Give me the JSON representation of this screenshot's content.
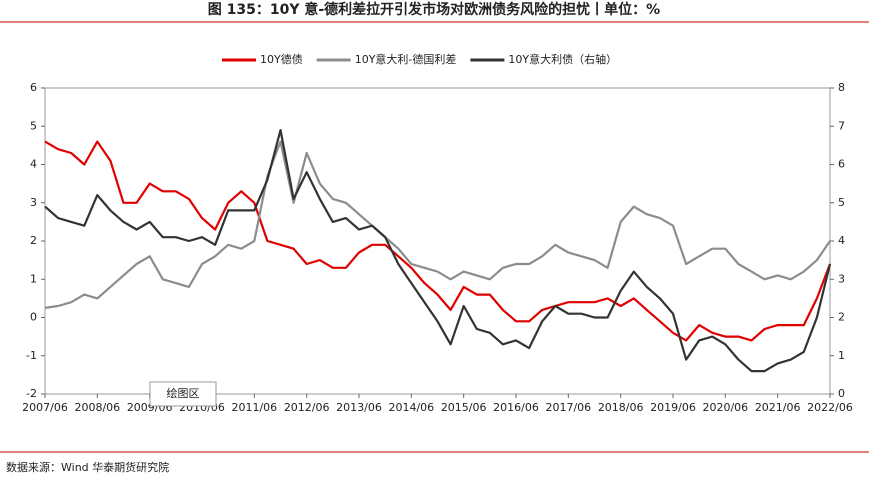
{
  "chart_data": {
    "type": "line",
    "title": "图 135：10Y 意-德利差拉开引发市场对欧洲债务风险的担忧丨单位：%",
    "source": "数据来源：Wind 华泰期货研究院",
    "tooltip": "绘图区",
    "x": [
      "2007/06",
      "2007/09",
      "2007/12",
      "2008/03",
      "2008/06",
      "2008/09",
      "2008/12",
      "2009/03",
      "2009/06",
      "2009/09",
      "2009/12",
      "2010/03",
      "2010/06",
      "2010/09",
      "2010/12",
      "2011/03",
      "2011/06",
      "2011/09",
      "2011/12",
      "2012/03",
      "2012/06",
      "2012/09",
      "2012/12",
      "2013/03",
      "2013/06",
      "2013/09",
      "2013/12",
      "2014/03",
      "2014/06",
      "2014/09",
      "2014/12",
      "2015/03",
      "2015/06",
      "2015/09",
      "2015/12",
      "2016/03",
      "2016/06",
      "2016/09",
      "2016/12",
      "2017/03",
      "2017/06",
      "2017/09",
      "2017/12",
      "2018/03",
      "2018/06",
      "2018/09",
      "2018/12",
      "2019/03",
      "2019/06",
      "2019/09",
      "2019/12",
      "2020/03",
      "2020/06",
      "2020/09",
      "2020/12",
      "2021/03",
      "2021/06",
      "2021/09",
      "2021/12",
      "2022/03",
      "2022/06"
    ],
    "xlim": [
      "2007/06",
      "2022/06"
    ],
    "xticks": [
      "2007/06",
      "2008/06",
      "2009/06",
      "2010/06",
      "2011/06",
      "2012/06",
      "2013/06",
      "2014/06",
      "2015/06",
      "2016/06",
      "2017/06",
      "2018/06",
      "2019/06",
      "2020/06",
      "2021/06",
      "2022/06"
    ],
    "ylim": [
      -2,
      6
    ],
    "yticks": [
      -2,
      -1,
      0,
      1,
      2,
      3,
      4,
      5,
      6
    ],
    "y2lim": [
      0,
      8
    ],
    "y2ticks": [
      0,
      1,
      2,
      3,
      4,
      5,
      6,
      7,
      8
    ],
    "series": [
      {
        "name": "10Y德债",
        "color": "#e00000",
        "values": [
          4.6,
          4.4,
          4.3,
          4.0,
          4.6,
          4.1,
          3.0,
          3.0,
          3.5,
          3.3,
          3.3,
          3.1,
          2.6,
          2.3,
          3.0,
          3.3,
          3.0,
          2.0,
          1.9,
          1.8,
          1.4,
          1.5,
          1.3,
          1.3,
          1.7,
          1.9,
          1.9,
          1.6,
          1.3,
          0.9,
          0.6,
          0.2,
          0.8,
          0.6,
          0.6,
          0.2,
          -0.1,
          -0.1,
          0.2,
          0.3,
          0.4,
          0.4,
          0.4,
          0.5,
          0.3,
          0.5,
          0.2,
          -0.1,
          -0.4,
          -0.6,
          -0.2,
          -0.4,
          -0.5,
          -0.5,
          -0.6,
          -0.3,
          -0.2,
          -0.2,
          -0.2,
          0.5,
          1.4
        ]
      },
      {
        "name": "10Y意大利-德国利差",
        "color": "#8c8c8c",
        "values": [
          0.25,
          0.3,
          0.4,
          0.6,
          0.5,
          0.8,
          1.1,
          1.4,
          1.6,
          1.0,
          0.9,
          0.8,
          1.4,
          1.6,
          1.9,
          1.8,
          2.0,
          3.7,
          4.6,
          3.0,
          4.3,
          3.5,
          3.1,
          3.0,
          2.7,
          2.4,
          2.1,
          1.8,
          1.4,
          1.3,
          1.2,
          1.0,
          1.2,
          1.1,
          1.0,
          1.3,
          1.4,
          1.4,
          1.6,
          1.9,
          1.7,
          1.6,
          1.5,
          1.3,
          2.5,
          2.9,
          2.7,
          2.6,
          2.4,
          1.4,
          1.6,
          1.8,
          1.8,
          1.4,
          1.2,
          1.0,
          1.1,
          1.0,
          1.2,
          1.5,
          2.0
        ]
      },
      {
        "name": "10Y意大利债（右轴）",
        "color": "#333333",
        "axis": "y2",
        "values": [
          4.9,
          4.6,
          4.5,
          4.4,
          5.2,
          4.8,
          4.5,
          4.3,
          4.5,
          4.1,
          4.1,
          4.0,
          4.1,
          3.9,
          4.8,
          4.8,
          4.8,
          5.6,
          6.9,
          5.1,
          5.8,
          5.1,
          4.5,
          4.6,
          4.3,
          4.4,
          4.1,
          3.4,
          2.9,
          2.4,
          1.9,
          1.3,
          2.3,
          1.7,
          1.6,
          1.3,
          1.4,
          1.2,
          1.9,
          2.3,
          2.1,
          2.1,
          2.0,
          2.0,
          2.7,
          3.2,
          2.8,
          2.5,
          2.1,
          0.9,
          1.4,
          1.5,
          1.3,
          0.9,
          0.6,
          0.6,
          0.8,
          0.9,
          1.1,
          2.0,
          3.4
        ]
      }
    ]
  }
}
